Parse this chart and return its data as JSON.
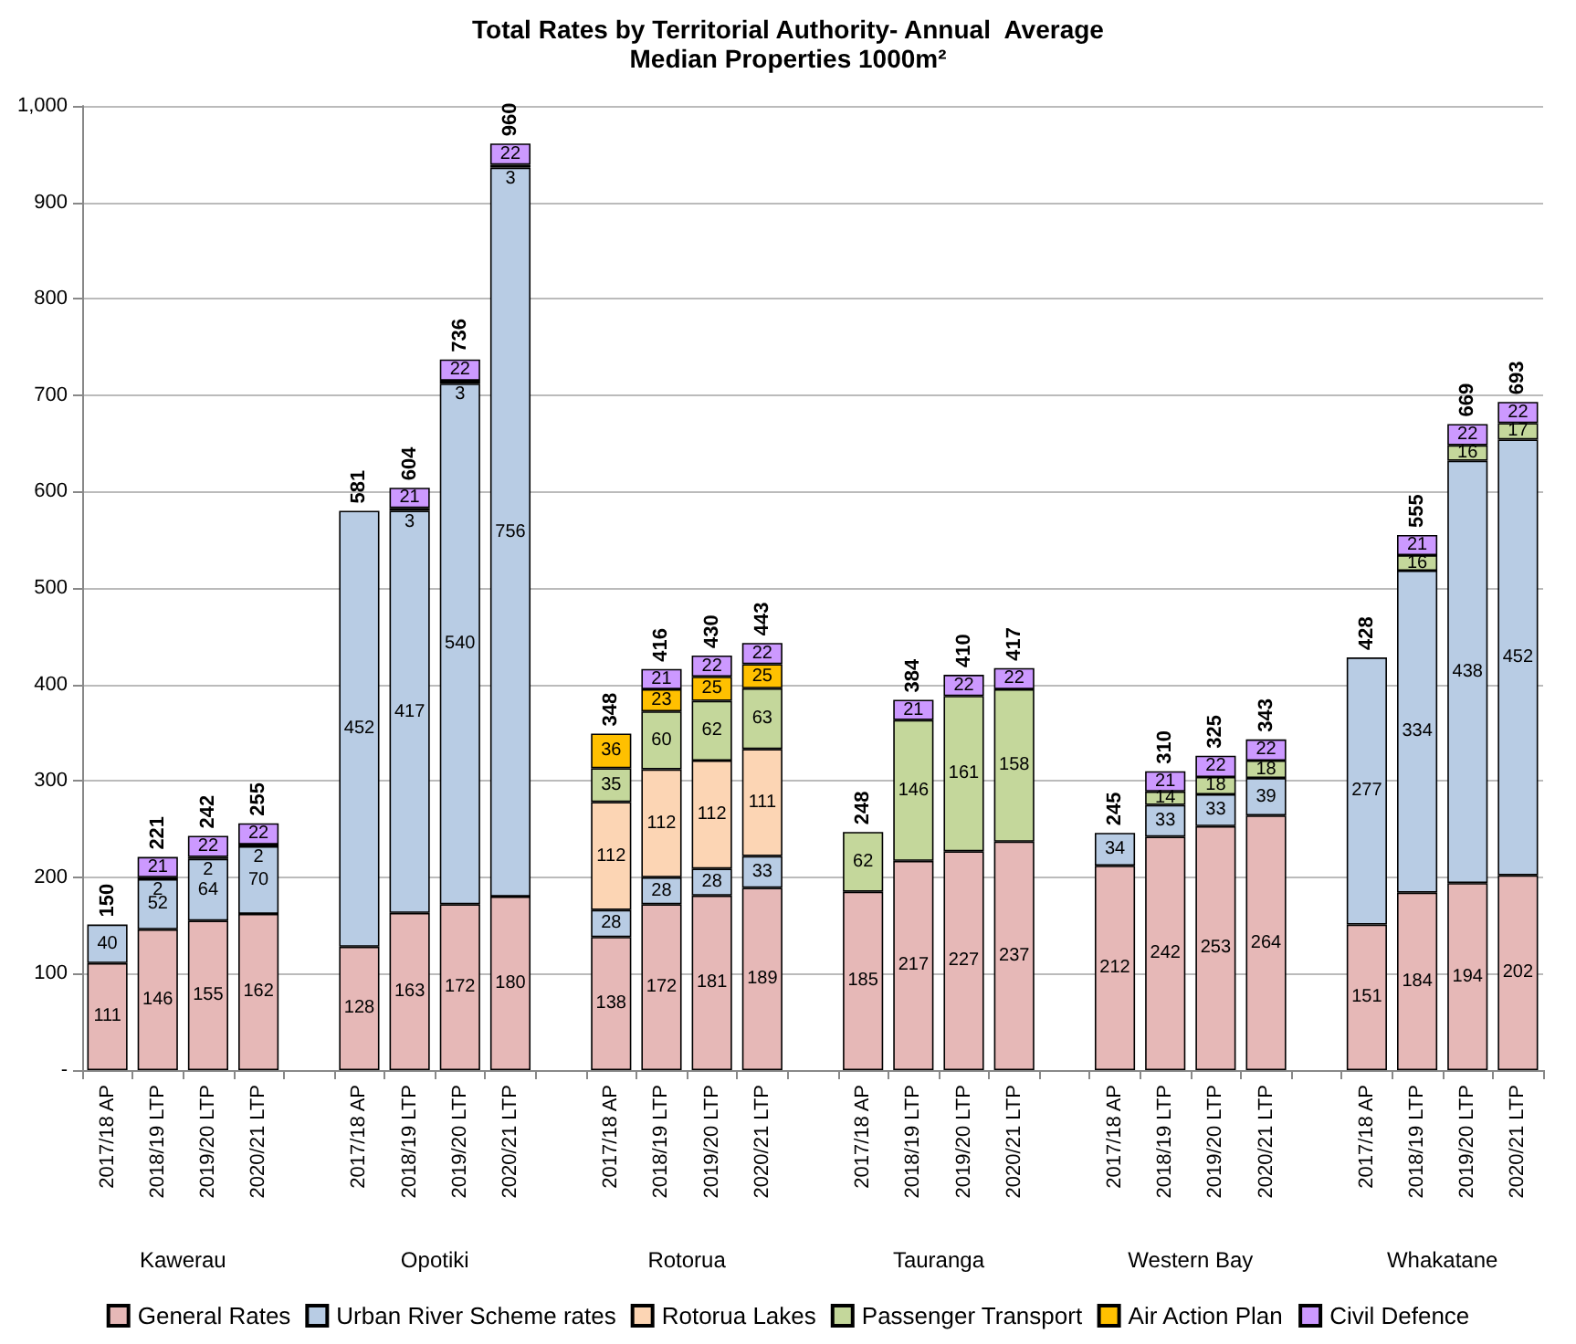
{
  "chart_data": {
    "type": "bar",
    "title": "Total Rates by Territorial Authority- Annual  Average",
    "subtitle": "Median Properties 1000m²",
    "categories": [
      "2017/18 AP",
      "2018/19 LTP",
      "2019/20 LTP",
      "2020/21 LTP",
      null,
      "2017/18 AP",
      "2018/19 LTP",
      "2019/20 LTP",
      "2020/21 LTP",
      null,
      "2017/18 AP",
      "2018/19 LTP",
      "2019/20 LTP",
      "2020/21 LTP",
      null,
      "2017/18 AP",
      "2018/19 LTP",
      "2019/20 LTP",
      "2020/21 LTP",
      null,
      "2017/18 AP",
      "2018/19 LTP",
      "2019/20 LTP",
      "2020/21 LTP",
      null,
      "2017/18 AP",
      "2018/19 LTP",
      "2019/20 LTP",
      "2020/21 LTP"
    ],
    "annotations": [
      "Kawerau",
      "Opotiki",
      "Rotorua",
      "Tauranga",
      "Western Bay",
      "Whakatane"
    ],
    "stacked": true,
    "data_labels": true,
    "series": [
      {
        "name": "General Rates",
        "color": "#e6b8b7",
        "values": [
          111,
          146,
          155,
          162,
          null,
          128,
          163,
          172,
          180,
          null,
          138,
          172,
          181,
          189,
          null,
          185,
          217,
          227,
          237,
          null,
          212,
          242,
          253,
          264,
          null,
          151,
          184,
          194,
          202
        ]
      },
      {
        "name": "Urban River Scheme rates",
        "color": "#b8cce4",
        "values": [
          40,
          52,
          64,
          70,
          null,
          452,
          417,
          540,
          756,
          null,
          28,
          28,
          28,
          33,
          null,
          null,
          null,
          null,
          null,
          null,
          34,
          33,
          33,
          39,
          null,
          277,
          334,
          438,
          452
        ]
      },
      {
        "name": "Rotorua Lakes",
        "color": "#fcd5b4",
        "values": [
          null,
          null,
          null,
          null,
          null,
          null,
          null,
          null,
          null,
          null,
          112,
          112,
          112,
          111,
          null,
          null,
          null,
          null,
          null,
          null,
          null,
          null,
          null,
          null,
          null,
          null,
          null,
          null,
          null
        ]
      },
      {
        "name": "Passenger Transport",
        "color": "#c4d79b",
        "values": [
          null,
          2,
          2,
          2,
          null,
          null,
          3,
          3,
          3,
          null,
          35,
          60,
          62,
          63,
          null,
          62,
          146,
          161,
          158,
          null,
          null,
          14,
          18,
          18,
          null,
          null,
          16,
          16,
          17
        ]
      },
      {
        "name": "Air Action Plan",
        "color": "#ffc000",
        "values": [
          null,
          null,
          null,
          null,
          null,
          null,
          null,
          null,
          null,
          null,
          36,
          23,
          25,
          25,
          null,
          null,
          null,
          null,
          null,
          null,
          null,
          null,
          null,
          null,
          null,
          null,
          null,
          null,
          null
        ]
      },
      {
        "name": "Civil Defence",
        "color": "#cc99ff",
        "values": [
          null,
          21,
          22,
          22,
          null,
          null,
          21,
          22,
          22,
          null,
          null,
          21,
          22,
          22,
          null,
          null,
          21,
          22,
          22,
          null,
          null,
          21,
          22,
          22,
          null,
          null,
          21,
          22,
          22
        ]
      }
    ],
    "totals": [
      "150",
      "221",
      "242",
      "255",
      null,
      "581",
      "604",
      "736",
      "960",
      null,
      "348",
      "416",
      "430",
      "443",
      null,
      "248",
      "384",
      "410",
      "417",
      null,
      "245",
      "310",
      "325",
      "343",
      null,
      "428",
      "555",
      "669",
      "693"
    ],
    "ylim": [
      0,
      1000
    ],
    "yticks": [
      {
        "value": 0,
        "label": "-"
      },
      100,
      200,
      300,
      400,
      500,
      600,
      700,
      800,
      900,
      {
        "value": 1000,
        "label": "1,000"
      }
    ],
    "grid": "y",
    "legend": "bottom"
  }
}
